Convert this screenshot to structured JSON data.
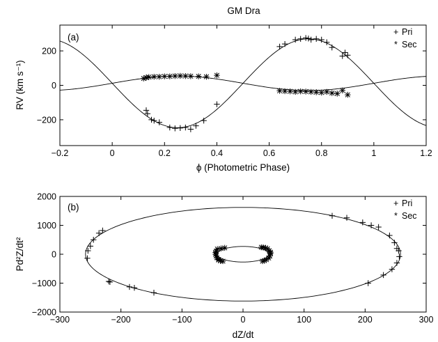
{
  "chart_data": [
    {
      "type": "scatter",
      "title": "GM Dra",
      "panel_label": "(a)",
      "xlabel": "ϕ (Photometric Phase)",
      "ylabel": "RV (km s⁻¹)",
      "xlim": [
        -0.2,
        1.2
      ],
      "ylim": [
        -350,
        350
      ],
      "xticks": [
        "−0.2",
        "0",
        "0.2",
        "0.4",
        "0.6",
        "0.8",
        "1",
        "1.2"
      ],
      "yticks": [
        "200",
        "0",
        "−200"
      ],
      "legend": {
        "position": "top-right",
        "entries": [
          {
            "symbol": "+",
            "label": "Pri"
          },
          {
            "symbol": "*",
            "label": "Sec"
          }
        ]
      },
      "model": {
        "primary": {
          "gamma": 12,
          "K": 258,
          "peak_phase": 0.75
        },
        "secondary": {
          "gamma": 12,
          "K": 42,
          "peak_phase": 0.25
        }
      },
      "series": [
        {
          "name": "Pri",
          "marker": "+",
          "x": [
            0.13,
            0.135,
            0.15,
            0.16,
            0.18,
            0.22,
            0.24,
            0.26,
            0.28,
            0.3,
            0.32,
            0.35,
            0.4,
            0.64,
            0.66,
            0.7,
            0.72,
            0.74,
            0.75,
            0.76,
            0.78,
            0.8,
            0.82,
            0.84,
            0.88,
            0.89,
            0.9
          ],
          "y": [
            -145,
            -165,
            -200,
            -205,
            -215,
            -245,
            -250,
            -248,
            -245,
            -255,
            -235,
            -205,
            -110,
            225,
            240,
            265,
            270,
            275,
            272,
            265,
            270,
            265,
            250,
            220,
            170,
            190,
            175
          ]
        },
        {
          "name": "Sec",
          "marker": "*",
          "x": [
            0.12,
            0.13,
            0.14,
            0.16,
            0.18,
            0.2,
            0.22,
            0.24,
            0.26,
            0.28,
            0.3,
            0.33,
            0.36,
            0.4,
            0.64,
            0.66,
            0.68,
            0.7,
            0.72,
            0.74,
            0.76,
            0.78,
            0.8,
            0.82,
            0.84,
            0.86,
            0.88,
            0.9
          ],
          "y": [
            40,
            45,
            48,
            50,
            50,
            52,
            52,
            54,
            55,
            54,
            53,
            52,
            50,
            58,
            -32,
            -34,
            -35,
            -38,
            -35,
            -36,
            -38,
            -40,
            -42,
            -38,
            -45,
            -48,
            -30,
            -55
          ]
        }
      ]
    },
    {
      "type": "scatter",
      "panel_label": "(b)",
      "xlabel": "dZ/dt",
      "ylabel": "Pd²Z/dt²",
      "xlim": [
        -300,
        300
      ],
      "ylim": [
        -2000,
        2000
      ],
      "xticks": [
        "−300",
        "−200",
        "−100",
        "0",
        "100",
        "200",
        "300"
      ],
      "yticks": [
        "2000",
        "1000",
        "0",
        "−1000",
        "−2000"
      ],
      "legend": {
        "position": "top-right",
        "entries": [
          {
            "symbol": "+",
            "label": "Pri"
          },
          {
            "symbol": "*",
            "label": "Sec"
          }
        ]
      },
      "model": {
        "primary": {
          "a": 258,
          "b": 1620
        },
        "secondary": {
          "a": 42,
          "b": 270
        }
      },
      "series": [
        {
          "name": "Pri",
          "marker": "+",
          "x": [
            -255,
            -254,
            -250,
            -245,
            -236,
            -230,
            -220,
            -218,
            -186,
            -178,
            -146,
            146,
            170,
            196,
            210,
            222,
            240,
            248,
            252,
            255,
            256,
            252,
            244,
            230,
            205
          ],
          "y": [
            -140,
            120,
            280,
            500,
            730,
            820,
            -940,
            -960,
            -1130,
            -1160,
            -1330,
            1330,
            1260,
            1100,
            1000,
            940,
            650,
            400,
            200,
            120,
            -80,
            -300,
            -520,
            -720,
            -1000
          ]
        },
        {
          "name": "Sec",
          "marker": "*",
          "x": [
            -44,
            -45,
            -43,
            -40,
            -37,
            -33,
            -30,
            -36,
            -42,
            -45,
            -44,
            -40,
            30,
            33,
            37,
            40,
            43,
            45,
            44,
            42,
            38,
            35,
            32,
            45
          ],
          "y": [
            100,
            0,
            -120,
            -200,
            -230,
            -240,
            220,
            200,
            180,
            60,
            -60,
            -180,
            240,
            235,
            220,
            190,
            120,
            30,
            -60,
            -130,
            -190,
            -220,
            -240,
            70
          ]
        }
      ]
    }
  ]
}
